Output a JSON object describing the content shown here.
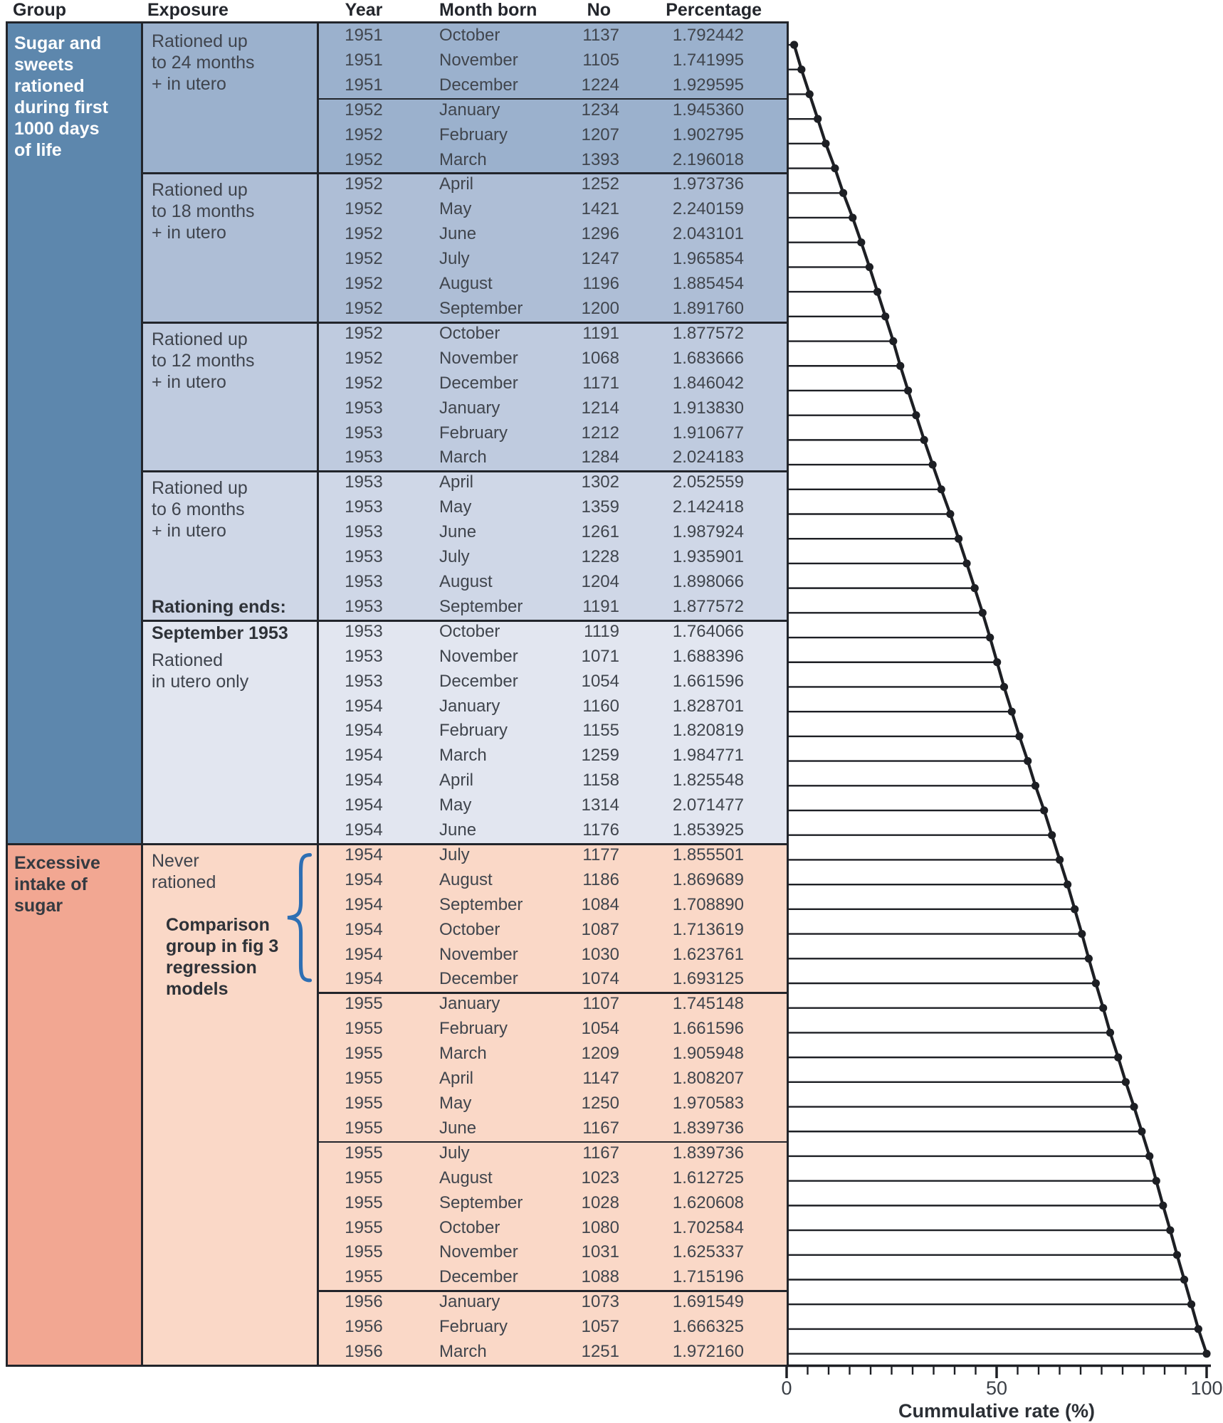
{
  "colors": {
    "group_blue": "#5d87ad",
    "group_pink": "#f2a792",
    "bands": [
      "#9bb1cd",
      "#aebed6",
      "#bfcbdf",
      "#cfd7e7",
      "#e2e6f0",
      "#fad8c7"
    ],
    "border": "#22252b",
    "line_and_dots": "#1d1f24",
    "brace_blue": "#2e6fb3",
    "text": "#40454d",
    "group_blue_text": "#ffffff",
    "group_pink_text": "#343a41"
  },
  "table": {
    "columns": [
      "Group",
      "Exposure",
      "Year",
      "Month born",
      "No",
      "Percentage"
    ],
    "groups": [
      {
        "rows": [
          1,
          33
        ],
        "label_lines": [
          "Sugar and",
          "sweets",
          "rationed",
          "during first",
          "1000 days",
          "of life"
        ],
        "bg": "#5d87ad",
        "text_color": "#ffffff"
      },
      {
        "rows": [
          34,
          54
        ],
        "label_lines": [
          "Excessive",
          "intake of",
          "sugar"
        ],
        "bg": "#f2a792",
        "text_color": "#343a41"
      }
    ],
    "exposure_cells": [
      {
        "rows": [
          1,
          6
        ],
        "band": 0,
        "lines": [
          "Rationed up",
          "to 24 months",
          "+ in utero"
        ]
      },
      {
        "rows": [
          7,
          12
        ],
        "band": 1,
        "lines": [
          "Rationed up",
          "to 18 months",
          "+ in utero"
        ]
      },
      {
        "rows": [
          13,
          18
        ],
        "band": 2,
        "lines": [
          "Rationed up",
          "to 12 months",
          "+ in utero"
        ]
      },
      {
        "rows": [
          19,
          24
        ],
        "band": 3,
        "lines": [
          "Rationed up",
          "to 6 months",
          "+ in utero"
        ],
        "bottom_bold": "Rationing ends:"
      },
      {
        "rows": [
          25,
          33
        ],
        "band": 4,
        "top_bold": "September 1953",
        "lines": [
          "Rationed",
          "in utero only"
        ]
      },
      {
        "rows": [
          34,
          54
        ],
        "band": 5,
        "lines": [
          "Never",
          "rationed"
        ],
        "note_bold_lines": [
          "Comparison",
          "group in fig 3",
          "regression",
          "models"
        ],
        "brace_rows": [
          34,
          39
        ]
      }
    ],
    "block_borders": {
      "exposure_and_table_after_rows": [
        6,
        12,
        18,
        24
      ],
      "full_width_after_rows": [
        33
      ],
      "table_only_after_rows": [
        3,
        39,
        45,
        51
      ]
    },
    "rows": [
      {
        "year": 1951,
        "month": "October",
        "no": 1137,
        "pct": "1.792442"
      },
      {
        "year": 1951,
        "month": "November",
        "no": 1105,
        "pct": "1.741995"
      },
      {
        "year": 1951,
        "month": "December",
        "no": 1224,
        "pct": "1.929595"
      },
      {
        "year": 1952,
        "month": "January",
        "no": 1234,
        "pct": "1.945360"
      },
      {
        "year": 1952,
        "month": "February",
        "no": 1207,
        "pct": "1.902795"
      },
      {
        "year": 1952,
        "month": "March",
        "no": 1393,
        "pct": "2.196018"
      },
      {
        "year": 1952,
        "month": "April",
        "no": 1252,
        "pct": "1.973736"
      },
      {
        "year": 1952,
        "month": "May",
        "no": 1421,
        "pct": "2.240159"
      },
      {
        "year": 1952,
        "month": "June",
        "no": 1296,
        "pct": "2.043101"
      },
      {
        "year": 1952,
        "month": "July",
        "no": 1247,
        "pct": "1.965854"
      },
      {
        "year": 1952,
        "month": "August",
        "no": 1196,
        "pct": "1.885454"
      },
      {
        "year": 1952,
        "month": "September",
        "no": 1200,
        "pct": "1.891760"
      },
      {
        "year": 1952,
        "month": "October",
        "no": 1191,
        "pct": "1.877572"
      },
      {
        "year": 1952,
        "month": "November",
        "no": 1068,
        "pct": "1.683666"
      },
      {
        "year": 1952,
        "month": "December",
        "no": 1171,
        "pct": "1.846042"
      },
      {
        "year": 1953,
        "month": "January",
        "no": 1214,
        "pct": "1.913830"
      },
      {
        "year": 1953,
        "month": "February",
        "no": 1212,
        "pct": "1.910677"
      },
      {
        "year": 1953,
        "month": "March",
        "no": 1284,
        "pct": "2.024183"
      },
      {
        "year": 1953,
        "month": "April",
        "no": 1302,
        "pct": "2.052559"
      },
      {
        "year": 1953,
        "month": "May",
        "no": 1359,
        "pct": "2.142418"
      },
      {
        "year": 1953,
        "month": "June",
        "no": 1261,
        "pct": "1.987924"
      },
      {
        "year": 1953,
        "month": "July",
        "no": 1228,
        "pct": "1.935901"
      },
      {
        "year": 1953,
        "month": "August",
        "no": 1204,
        "pct": "1.898066"
      },
      {
        "year": 1953,
        "month": "September",
        "no": 1191,
        "pct": "1.877572"
      },
      {
        "year": 1953,
        "month": "October",
        "no": 1119,
        "pct": "1.764066"
      },
      {
        "year": 1953,
        "month": "November",
        "no": 1071,
        "pct": "1.688396"
      },
      {
        "year": 1953,
        "month": "December",
        "no": 1054,
        "pct": "1.661596"
      },
      {
        "year": 1954,
        "month": "January",
        "no": 1160,
        "pct": "1.828701"
      },
      {
        "year": 1954,
        "month": "February",
        "no": 1155,
        "pct": "1.820819"
      },
      {
        "year": 1954,
        "month": "March",
        "no": 1259,
        "pct": "1.984771"
      },
      {
        "year": 1954,
        "month": "April",
        "no": 1158,
        "pct": "1.825548"
      },
      {
        "year": 1954,
        "month": "May",
        "no": 1314,
        "pct": "2.071477"
      },
      {
        "year": 1954,
        "month": "June",
        "no": 1176,
        "pct": "1.853925"
      },
      {
        "year": 1954,
        "month": "July",
        "no": 1177,
        "pct": "1.855501"
      },
      {
        "year": 1954,
        "month": "August",
        "no": 1186,
        "pct": "1.869689"
      },
      {
        "year": 1954,
        "month": "September",
        "no": 1084,
        "pct": "1.708890"
      },
      {
        "year": 1954,
        "month": "October",
        "no": 1087,
        "pct": "1.713619"
      },
      {
        "year": 1954,
        "month": "November",
        "no": 1030,
        "pct": "1.623761"
      },
      {
        "year": 1954,
        "month": "December",
        "no": 1074,
        "pct": "1.693125"
      },
      {
        "year": 1955,
        "month": "January",
        "no": 1107,
        "pct": "1.745148"
      },
      {
        "year": 1955,
        "month": "February",
        "no": 1054,
        "pct": "1.661596"
      },
      {
        "year": 1955,
        "month": "March",
        "no": 1209,
        "pct": "1.905948"
      },
      {
        "year": 1955,
        "month": "April",
        "no": 1147,
        "pct": "1.808207"
      },
      {
        "year": 1955,
        "month": "May",
        "no": 1250,
        "pct": "1.970583"
      },
      {
        "year": 1955,
        "month": "June",
        "no": 1167,
        "pct": "1.839736"
      },
      {
        "year": 1955,
        "month": "July",
        "no": 1167,
        "pct": "1.839736"
      },
      {
        "year": 1955,
        "month": "August",
        "no": 1023,
        "pct": "1.612725"
      },
      {
        "year": 1955,
        "month": "September",
        "no": 1028,
        "pct": "1.620608"
      },
      {
        "year": 1955,
        "month": "October",
        "no": 1080,
        "pct": "1.702584"
      },
      {
        "year": 1955,
        "month": "November",
        "no": 1031,
        "pct": "1.625337"
      },
      {
        "year": 1955,
        "month": "December",
        "no": 1088,
        "pct": "1.715196"
      },
      {
        "year": 1956,
        "month": "January",
        "no": 1073,
        "pct": "1.691549"
      },
      {
        "year": 1956,
        "month": "February",
        "no": 1057,
        "pct": "1.666325"
      },
      {
        "year": 1956,
        "month": "March",
        "no": 1251,
        "pct": "1.972160"
      }
    ]
  },
  "chart_data": {
    "type": "line",
    "title": "",
    "xlabel": "Cummulative rate (%)",
    "ylabel": "",
    "xlim": [
      0,
      100
    ],
    "xticks": [
      0,
      50,
      100
    ],
    "tick_labels": [
      "0",
      "50",
      "100"
    ],
    "minor_tick_step": 5,
    "marker": "filled-dot",
    "legend": "none",
    "grid": false,
    "cumulative": [
      1.792442,
      3.534437,
      5.464032,
      7.409392,
      9.312187,
      11.508205,
      13.481941,
      15.7221,
      17.765201,
      19.731055,
      21.616509,
      23.508269,
      25.385841,
      27.069507,
      28.915549,
      30.829379,
      32.740056,
      34.764239,
      36.816798,
      38.959216,
      40.94714,
      42.883041,
      44.781107,
      46.658679,
      48.422745,
      50.111141,
      51.772737,
      53.601438,
      55.422257,
      57.407028,
      59.232576,
      61.304053,
      63.157978,
      65.013479,
      66.883168,
      68.592058,
      70.305677,
      71.929438,
      73.622563,
      75.367711,
      77.029307,
      78.935255,
      80.743462,
      82.714045,
      84.553781,
      86.393517,
      88.006242,
      89.62685,
      91.329434,
      92.954771,
      94.669967,
      96.361516,
      98.027841,
      100
    ]
  }
}
